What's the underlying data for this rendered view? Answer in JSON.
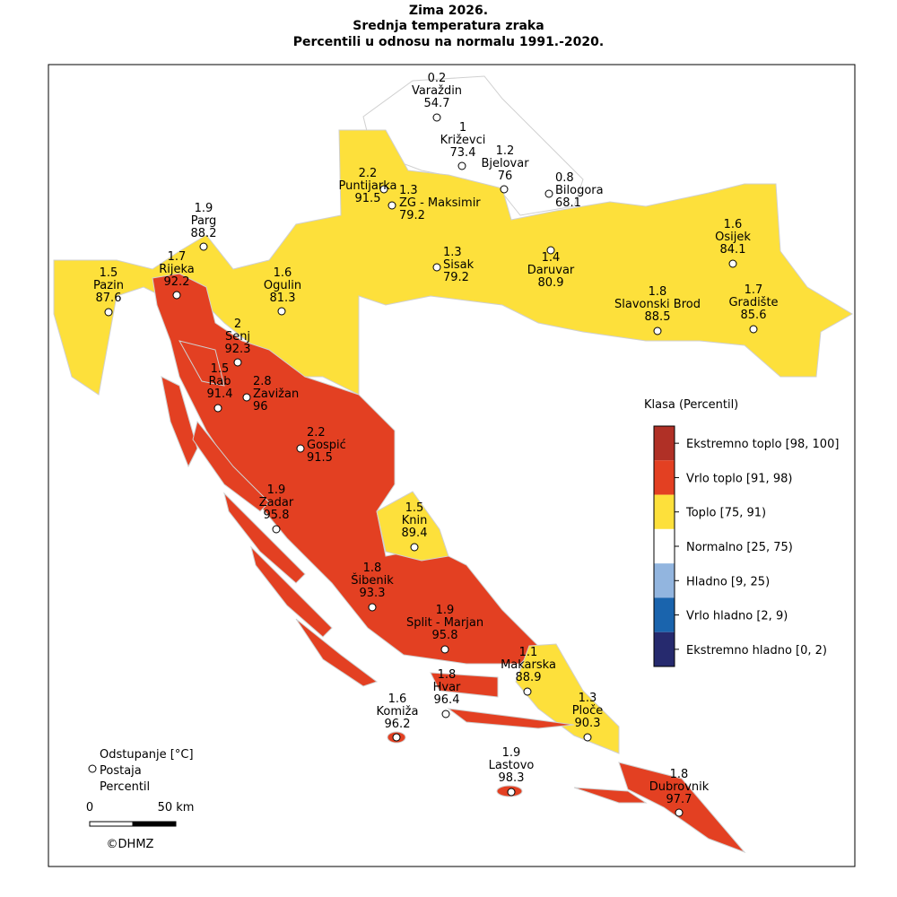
{
  "title": [
    "Zima 2026.",
    "Srednja temperatura zraka",
    "Percentili u odnosu na normalu 1991.-2020."
  ],
  "stations": [
    {
      "name": "Varaždin",
      "deviation": 0.2,
      "percentile": 54.7
    },
    {
      "name": "Križevci",
      "deviation": 1,
      "percentile": 73.4
    },
    {
      "name": "Bjelovar",
      "deviation": 1.2,
      "percentile": 76
    },
    {
      "name": "Bilogora",
      "deviation": 0.8,
      "percentile": 68.1
    },
    {
      "name": "Puntijarka",
      "deviation": 2.2,
      "percentile": 91.5
    },
    {
      "name": "ZG - Maksimir",
      "deviation": 1.3,
      "percentile": 79.2
    },
    {
      "name": "Parg",
      "deviation": 1.9,
      "percentile": 88.2
    },
    {
      "name": "Rijeka",
      "deviation": 1.7,
      "percentile": 92.2
    },
    {
      "name": "Pazin",
      "deviation": 1.5,
      "percentile": 87.6
    },
    {
      "name": "Ogulin",
      "deviation": 1.6,
      "percentile": 81.3
    },
    {
      "name": "Sisak",
      "deviation": 1.3,
      "percentile": 79.2
    },
    {
      "name": "Daruvar",
      "deviation": 1.4,
      "percentile": 80.9
    },
    {
      "name": "Osijek",
      "deviation": 1.6,
      "percentile": 84.1
    },
    {
      "name": "Slavonski Brod",
      "deviation": 1.8,
      "percentile": 88.5
    },
    {
      "name": "Gradište",
      "deviation": 1.7,
      "percentile": 85.6
    },
    {
      "name": "Senj",
      "deviation": 2,
      "percentile": 92.3
    },
    {
      "name": "Rab",
      "deviation": 1.5,
      "percentile": 91.4
    },
    {
      "name": "Zavižan",
      "deviation": 2.8,
      "percentile": 96
    },
    {
      "name": "Gospić",
      "deviation": 2.2,
      "percentile": 91.5
    },
    {
      "name": "Zadar",
      "deviation": 1.9,
      "percentile": 95.8
    },
    {
      "name": "Knin",
      "deviation": 1.5,
      "percentile": 89.4
    },
    {
      "name": "Šibenik",
      "deviation": 1.8,
      "percentile": 93.3
    },
    {
      "name": "Split - Marjan",
      "deviation": 1.9,
      "percentile": 95.8
    },
    {
      "name": "Makarska",
      "deviation": 1.1,
      "percentile": 88.9
    },
    {
      "name": "Hvar",
      "deviation": 1.8,
      "percentile": 96.4
    },
    {
      "name": "Komiža",
      "deviation": 1.6,
      "percentile": 96.2
    },
    {
      "name": "Ploče",
      "deviation": 1.3,
      "percentile": 90.3
    },
    {
      "name": "Lastovo",
      "deviation": 1.9,
      "percentile": 98.3
    },
    {
      "name": "Dubrovnik",
      "deviation": 1.8,
      "percentile": 97.7
    }
  ],
  "legend": {
    "title": "Klasa (Percentil)",
    "classes": [
      {
        "label": "Ekstremno toplo [98, 100]",
        "color": "#b03026"
      },
      {
        "label": "Vrlo toplo [91, 98)",
        "color": "#e34022"
      },
      {
        "label": "Toplo [75, 91)",
        "color": "#fde03b"
      },
      {
        "label": "Normalno [25, 75)",
        "color": "#ffffff"
      },
      {
        "label": "Hladno [9, 25)",
        "color": "#92b5df"
      },
      {
        "label": "Vrlo hladno [2, 9)",
        "color": "#1a64ad"
      },
      {
        "label": "Ekstremno hladno [0, 2)",
        "color": "#262a6e"
      }
    ]
  },
  "key": {
    "deviation": "Odstupanje [°C]",
    "station": "Postaja",
    "percentile": "Percentil"
  },
  "scale": {
    "start": "0",
    "end": "50 km"
  },
  "copyright": "©DHMZ"
}
